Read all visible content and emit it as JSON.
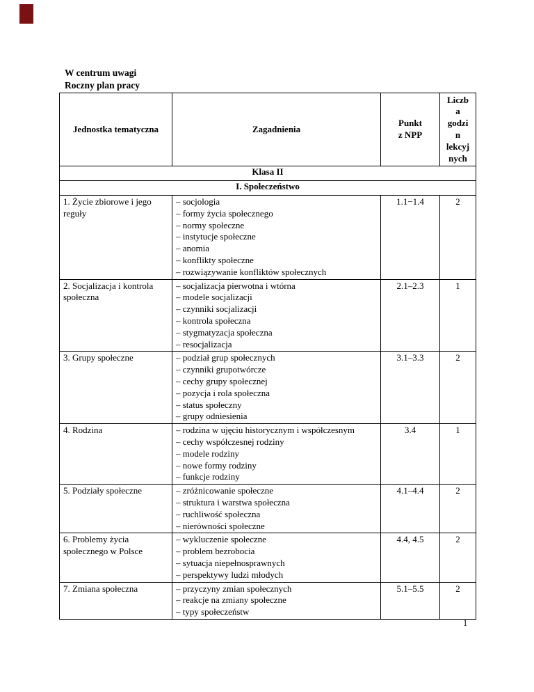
{
  "colors": {
    "corner_mark": "#7b1113",
    "table_border": "#000000",
    "page_background": "#ffffff"
  },
  "doc": {
    "title_line1": "W centrum uwagi",
    "title_line2": "Roczny plan pracy",
    "page_number": "1"
  },
  "table": {
    "headers": {
      "topic": "Jednostka tematyczna",
      "issues": "Zagadnienia",
      "npp": "Punkt\nz NPP",
      "hours": "Liczb\na\ngodzi\nn\nlekcyj\nnych"
    },
    "sections": {
      "klasa": "Klasa II",
      "chapter": "I. Społeczeństwo"
    },
    "rows": [
      {
        "topic": "1. Życie zbiorowe i jego reguły",
        "items": [
          "– socjologia",
          "– formy życia społecznego",
          "– normy społeczne",
          "– instytucje społeczne",
          "– anomia",
          "– konflikty społeczne",
          "– rozwiązywanie konfliktów społecznych"
        ],
        "npp": "1.1−1.4",
        "hours": "2"
      },
      {
        "topic": "2. Socjalizacja i kontrola społeczna",
        "items": [
          "– socjalizacja pierwotna i wtórna",
          "– modele socjalizacji",
          "– czynniki socjalizacji",
          "– kontrola społeczna",
          "– stygmatyzacja społeczna",
          "– resocjalizacja"
        ],
        "npp": "2.1–2.3",
        "hours": "1"
      },
      {
        "topic": "3. Grupy społeczne",
        "items": [
          "– podział grup społecznych",
          "– czynniki grupotwórcze",
          "– cechy grupy społecznej",
          "– pozycja i rola społeczna",
          "– status społeczny",
          "– grupy odniesienia"
        ],
        "npp": "3.1–3.3",
        "hours": "2"
      },
      {
        "topic": "4. Rodzina",
        "items": [
          "– rodzina w ujęciu historycznym i współczesnym",
          "– cechy współczesnej rodziny",
          "– modele rodziny",
          "– nowe formy rodziny",
          "– funkcje rodziny"
        ],
        "npp": "3.4",
        "hours": "1"
      },
      {
        "topic": "5. Podziały społeczne",
        "items": [
          "– zróżnicowanie społeczne",
          "– struktura i warstwa społeczna",
          "– ruchliwość społeczna",
          "– nierówności społeczne"
        ],
        "npp": "4.1–4.4",
        "hours": "2"
      },
      {
        "topic": "6. Problemy życia społecznego w Polsce",
        "items": [
          "– wykluczenie społeczne",
          "– problem bezrobocia",
          "– sytuacja niepełnosprawnych",
          "– perspektywy ludzi młodych"
        ],
        "npp": "4.4, 4.5",
        "hours": "2"
      },
      {
        "topic": "7. Zmiana społeczna",
        "items": [
          "– przyczyny zmian społecznych",
          "– reakcje na zmiany społeczne",
          "– typy społeczeństw"
        ],
        "npp": "5.1–5.5",
        "hours": "2"
      }
    ]
  }
}
